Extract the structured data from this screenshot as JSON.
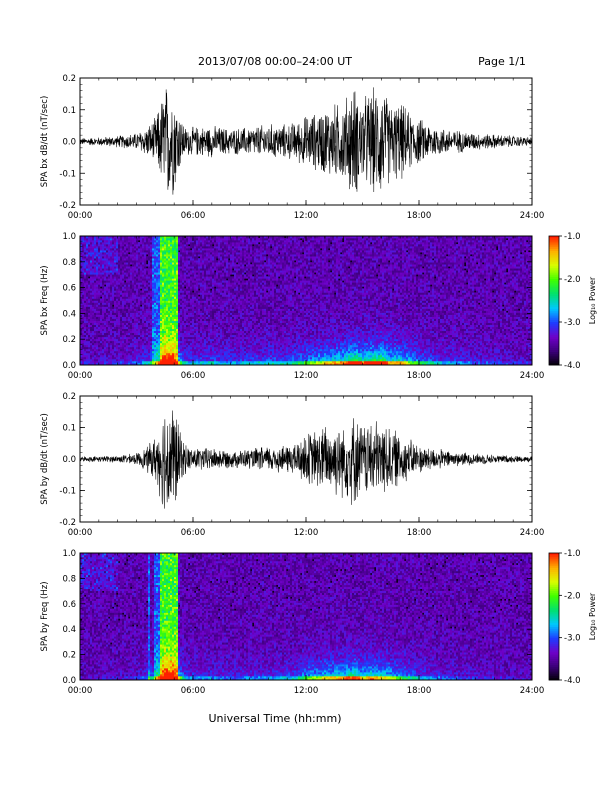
{
  "header": {
    "title": "2013/07/08  00:00–24:00 UT",
    "page": "Page 1/1"
  },
  "xlabel": "Universal Time (hh:mm)",
  "colorbar": {
    "label": "Log₁₀ Power",
    "ticks": [
      "-1.0",
      "-2.0",
      "-3.0",
      "-4.0"
    ],
    "range": [
      -4.0,
      -1.0
    ],
    "colors": [
      "#000000",
      "#3a0078",
      "#6f00c8",
      "#1e3cff",
      "#00c8ff",
      "#00e070",
      "#40ff00",
      "#d8ff00",
      "#ffb000",
      "#ff2000"
    ]
  },
  "chart_data": [
    {
      "type": "line",
      "ylabel": "SPA bx dB/dt (nT/sec)",
      "xlim": [
        0,
        24
      ],
      "ylim": [
        -0.2,
        0.2
      ],
      "xticks": [
        "00:00",
        "06:00",
        "12:00",
        "18:00",
        "24:00"
      ],
      "yticks": [
        "0.2",
        "0.1",
        "0.0",
        "-0.1",
        "-0.2"
      ],
      "envelope": {
        "hours": [
          0,
          1,
          2,
          3,
          3.5,
          4,
          4.2,
          4.5,
          4.8,
          5.0,
          5.3,
          5.6,
          6,
          7,
          8,
          9,
          10,
          11,
          11.5,
          12,
          12.5,
          13,
          14,
          14.5,
          15,
          15.5,
          16,
          16.5,
          17,
          17.5,
          18,
          19,
          20,
          21,
          22,
          23,
          24
        ],
        "amplitude": [
          0.012,
          0.015,
          0.02,
          0.03,
          0.05,
          0.08,
          0.12,
          0.2,
          0.2,
          0.18,
          0.1,
          0.05,
          0.05,
          0.055,
          0.045,
          0.05,
          0.06,
          0.06,
          0.07,
          0.09,
          0.1,
          0.12,
          0.14,
          0.2,
          0.15,
          0.18,
          0.2,
          0.13,
          0.14,
          0.1,
          0.08,
          0.05,
          0.04,
          0.03,
          0.025,
          0.02,
          0.015
        ]
      }
    },
    {
      "type": "heatmap",
      "ylabel": "SPA bx Freq (Hz)",
      "xlim": [
        0,
        24
      ],
      "ylim": [
        0.0,
        1.0
      ],
      "xticks": [
        "00:00",
        "06:00",
        "12:00",
        "18:00",
        "24:00"
      ],
      "yticks": [
        "1.0",
        "0.8",
        "0.6",
        "0.4",
        "0.2",
        "0.0"
      ],
      "zlim": [
        -4.0,
        -1.0
      ]
    },
    {
      "type": "line",
      "ylabel": "SPA by dB/dt (nT/sec)",
      "xlim": [
        0,
        24
      ],
      "ylim": [
        -0.2,
        0.2
      ],
      "xticks": [
        "00:00",
        "06:00",
        "12:00",
        "18:00",
        "24:00"
      ],
      "yticks": [
        "0.2",
        "0.1",
        "0.0",
        "-0.1",
        "-0.2"
      ],
      "envelope": {
        "hours": [
          0,
          1,
          2,
          3,
          3.5,
          4,
          4.2,
          4.5,
          4.8,
          5.0,
          5.3,
          5.6,
          6,
          7,
          8,
          9,
          10,
          11,
          11.5,
          12,
          12.5,
          13,
          14,
          14.5,
          15,
          15.5,
          16,
          16.5,
          17,
          17.5,
          18,
          19,
          20,
          21,
          22,
          23,
          24
        ],
        "amplitude": [
          0.008,
          0.01,
          0.012,
          0.02,
          0.04,
          0.08,
          0.12,
          0.2,
          0.2,
          0.2,
          0.1,
          0.05,
          0.04,
          0.04,
          0.03,
          0.035,
          0.045,
          0.05,
          0.06,
          0.09,
          0.1,
          0.12,
          0.13,
          0.16,
          0.12,
          0.14,
          0.13,
          0.11,
          0.09,
          0.07,
          0.05,
          0.035,
          0.025,
          0.02,
          0.015,
          0.012,
          0.01
        ]
      }
    },
    {
      "type": "heatmap",
      "ylabel": "SPA by Freq (Hz)",
      "xlim": [
        0,
        24
      ],
      "ylim": [
        0.0,
        1.0
      ],
      "xticks": [
        "00:00",
        "06:00",
        "12:00",
        "18:00",
        "24:00"
      ],
      "yticks": [
        "1.0",
        "0.8",
        "0.6",
        "0.4",
        "0.2",
        "0.0"
      ],
      "zlim": [
        -4.0,
        -1.0
      ]
    }
  ]
}
